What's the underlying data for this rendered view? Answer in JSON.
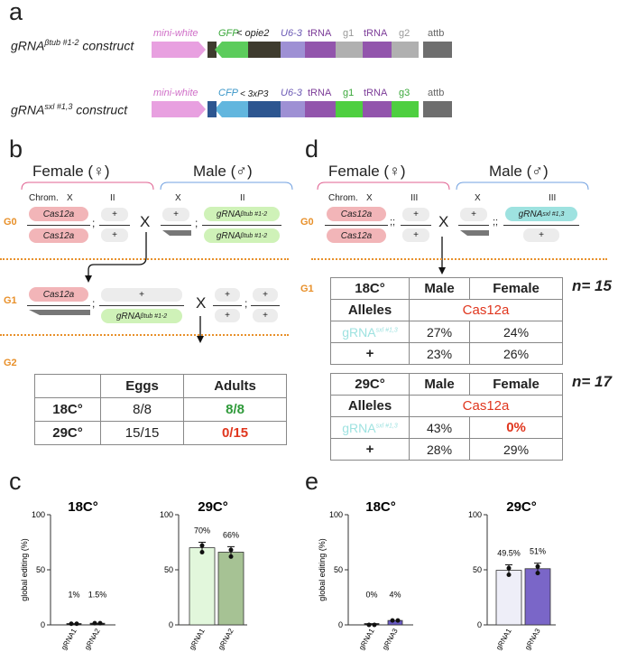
{
  "panels": {
    "a": "a",
    "b": "b",
    "c": "c",
    "d": "d",
    "e": "e"
  },
  "construct_a": {
    "title_prefix": "gRNA",
    "title_sup": "βtub #1-2",
    "title_suffix": " construct",
    "labels": {
      "mini_white": "mini-white",
      "gfp": "GFP",
      "opie": "< opie2",
      "u63": "U6-3",
      "trna1": "tRNA",
      "g1": "g1",
      "trna2": "tRNA",
      "g2": "g2",
      "attb": "attb"
    },
    "colors": {
      "mini_white": "#e8a0e0",
      "gfp": "#5ccc5c",
      "opie": "#3e3b2e",
      "u63": "#9e90d4",
      "trna": "#9255ac",
      "g": "#b0b0b0",
      "attb": "#6e6e6e"
    }
  },
  "construct_b": {
    "title_prefix": "gRNA",
    "title_sup": "sxl #1,3",
    "title_suffix": " construct",
    "labels": {
      "mini_white": "mini-white",
      "cfp": "CFP",
      "p3": "< 3xP3",
      "u63": "U6-3",
      "trna1": "tRNA",
      "g1": "g1",
      "trna2": "tRNA",
      "g3": "g3",
      "attb": "attb"
    },
    "colors": {
      "mini_white": "#e8a0e0",
      "cfp": "#62b6de",
      "p3": "#2d5690",
      "u63": "#9e90d4",
      "trna": "#9255ac",
      "g": "#4ecf40",
      "attb": "#6e6e6e"
    }
  },
  "cross_b": {
    "female": "Female (♀)",
    "male": "Male (♂)",
    "chrom": "Chrom.",
    "x": "X",
    "ii": "II",
    "cross": "X",
    "g0": "G0",
    "g1": "G1",
    "g2": "G2",
    "cas": "Cas12a",
    "plus": "+",
    "grna": "gRNA",
    "grna_sup": "βtub #1-2"
  },
  "table_b": {
    "headers": [
      "",
      "Eggs",
      "Adults"
    ],
    "rows": [
      [
        "18C°",
        "8/8",
        "8/8"
      ],
      [
        "29C°",
        "15/15",
        "0/15"
      ]
    ]
  },
  "cross_d": {
    "female": "Female (♀)",
    "male": "Male (♂)",
    "chrom": "Chrom.",
    "x": "X",
    "iii": "III",
    "cross": "X",
    "g0": "G0",
    "g1": "G1",
    "cas": "Cas12a",
    "plus": "+",
    "grna": "gRNA",
    "grna_sup": "sxl #1,3"
  },
  "table_d1": {
    "n": "n= 15",
    "headers": [
      "18C°",
      "Male",
      "Female"
    ],
    "alleles": "Alleles",
    "alleles_val": "Cas12a",
    "rows": [
      [
        "gRNA",
        "sxl #1,3",
        "27%",
        "24%"
      ],
      [
        "+",
        "",
        "23%",
        "26%"
      ]
    ]
  },
  "table_d2": {
    "n": "n= 17",
    "headers": [
      "29C°",
      "Male",
      "Female"
    ],
    "alleles": "Alleles",
    "alleles_val": "Cas12a",
    "rows": [
      [
        "gRNA",
        "sxl #1,3",
        "43%",
        "0%"
      ],
      [
        "+",
        "",
        "28%",
        "29%"
      ]
    ]
  },
  "charts": {
    "ylabel": "global editing (%)",
    "ticks": [
      "0",
      "50",
      "100"
    ],
    "c18": {
      "title": "18C°",
      "cats": [
        "gRNA1",
        "gRNA2"
      ],
      "pct": [
        "1%",
        "1.5%"
      ]
    },
    "c29": {
      "title": "29C°",
      "cats": [
        "gRNA1",
        "gRNA2"
      ],
      "pct": [
        "70%",
        "66%"
      ]
    },
    "e18": {
      "title": "18C°",
      "cats": [
        "gRNA1",
        "gRNA3"
      ],
      "pct": [
        "0%",
        "4%"
      ]
    },
    "e29": {
      "title": "29C°",
      "cats": [
        "gRNA1",
        "gRNA3"
      ],
      "pct": [
        "49.5%",
        "51%"
      ]
    }
  },
  "chart_data": [
    {
      "type": "bar",
      "title": "18C°",
      "categories": [
        "gRNA1",
        "gRNA2"
      ],
      "values": [
        1,
        1.5
      ],
      "ylabel": "global editing (%)",
      "ylim": [
        0,
        100
      ]
    },
    {
      "type": "bar",
      "title": "29C°",
      "categories": [
        "gRNA1",
        "gRNA2"
      ],
      "values": [
        70,
        66
      ],
      "ylabel": "",
      "ylim": [
        0,
        100
      ]
    },
    {
      "type": "bar",
      "title": "18C°",
      "categories": [
        "gRNA1",
        "gRNA3"
      ],
      "values": [
        0,
        4
      ],
      "ylabel": "global editing (%)",
      "ylim": [
        0,
        100
      ]
    },
    {
      "type": "bar",
      "title": "29C°",
      "categories": [
        "gRNA1",
        "gRNA3"
      ],
      "values": [
        49.5,
        51
      ],
      "ylabel": "",
      "ylim": [
        0,
        100
      ]
    }
  ]
}
